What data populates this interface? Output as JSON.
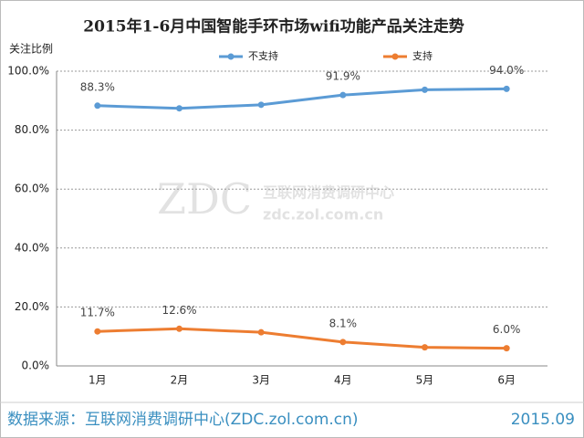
{
  "chart_data": {
    "type": "line",
    "title": "2015年1-6月中国智能手环市场wifi功能产品关注走势",
    "y_label": "关注比例",
    "categories": [
      "1月",
      "2月",
      "3月",
      "4月",
      "5月",
      "6月"
    ],
    "series": [
      {
        "name": "不支持",
        "color": "#5b9bd5",
        "values": [
          88.3,
          87.4,
          88.6,
          91.9,
          93.7,
          94.0
        ],
        "value_labels": [
          "88.3%",
          null,
          null,
          "91.9%",
          null,
          "94.0%"
        ]
      },
      {
        "name": "支持",
        "color": "#ed7d31",
        "values": [
          11.7,
          12.6,
          11.4,
          8.1,
          6.3,
          6.0
        ],
        "value_labels": [
          "11.7%",
          "12.6%",
          null,
          "8.1%",
          null,
          "6.0%"
        ]
      }
    ],
    "ylim": [
      0,
      100
    ],
    "yticks": [
      {
        "value": 0,
        "label": "0.0%"
      },
      {
        "value": 20,
        "label": "20.0%"
      },
      {
        "value": 40,
        "label": "40.0%"
      },
      {
        "value": 60,
        "label": "60.0%"
      },
      {
        "value": 80,
        "label": "80.0%"
      },
      {
        "value": 100,
        "label": "100.0%"
      }
    ],
    "grid": true,
    "legend": "top",
    "watermark": {
      "logo": "ZDC",
      "name": "互联网消费调研中心",
      "url": "zdc.zol.com.cn"
    },
    "source": "数据来源：互联网消费调研中心(ZDC.zol.com.cn)",
    "date": "2015.09"
  }
}
